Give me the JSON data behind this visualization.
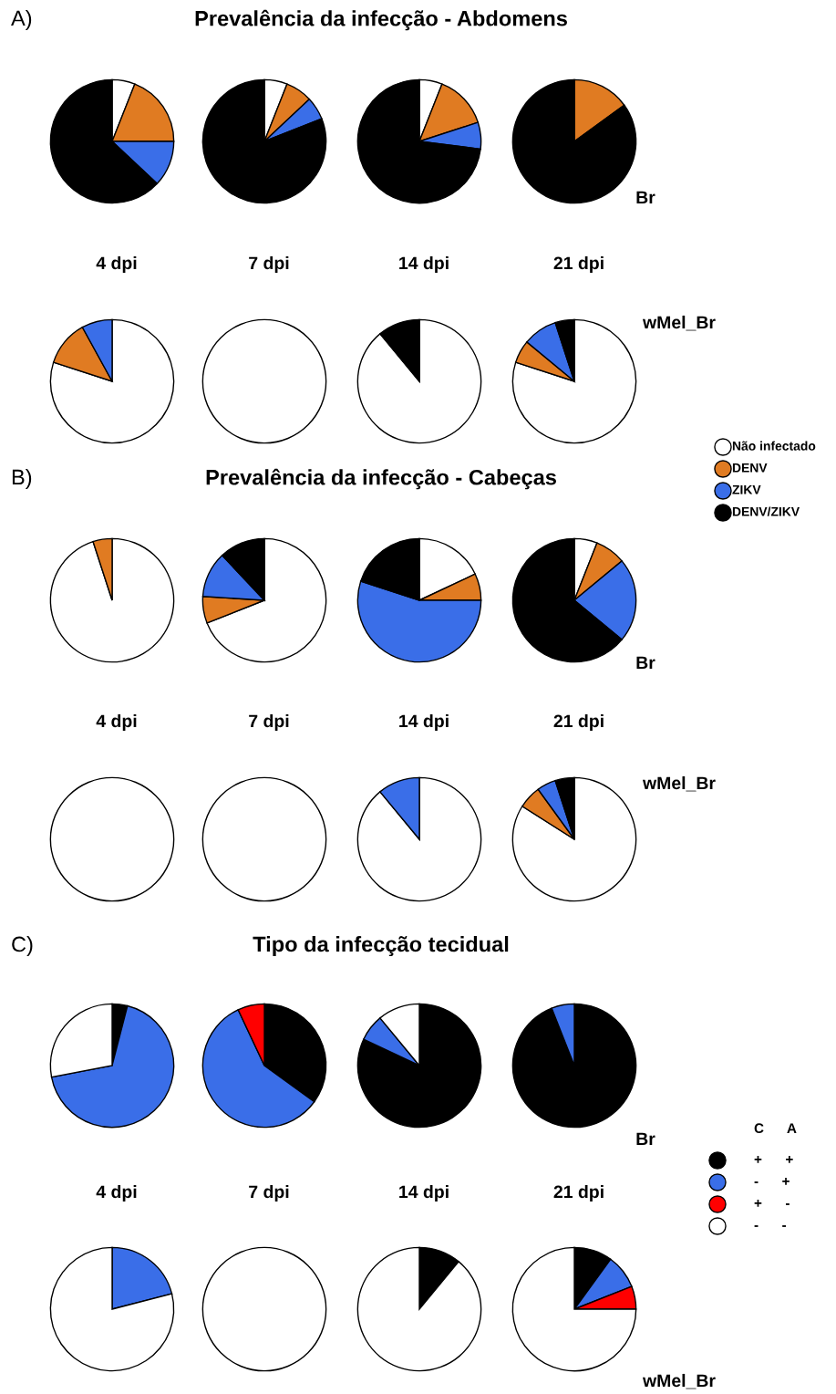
{
  "chart_data": [
    {
      "type": "other",
      "title": "Prevalência da infecção - Abdomens",
      "annotations": [
        "A)"
      ]
    },
    {
      "type": "pie",
      "xlabel": "4 dpi",
      "legend": "right",
      "categories": [
        "Não infectado",
        "DENV",
        "ZIKV",
        "DENV/ZIKV"
      ],
      "values": [
        6,
        19,
        12,
        63
      ],
      "colors": [
        "#ffffff",
        "#e07b22",
        "#3a6ee8",
        "#000000"
      ]
    },
    {
      "type": "pie",
      "xlabel": "7 dpi",
      "categories": [
        null,
        null,
        null,
        null
      ],
      "values": [
        6,
        7,
        6,
        81
      ],
      "colors": [
        "#ffffff",
        "#e07b22",
        "#3a6ee8",
        "#000000"
      ]
    },
    {
      "type": "pie",
      "xlabel": "14 dpi",
      "categories": [
        null,
        null,
        null,
        null
      ],
      "values": [
        6,
        14,
        7,
        73
      ],
      "colors": [
        "#ffffff",
        "#e07b22",
        "#3a6ee8",
        "#000000"
      ]
    },
    {
      "type": "pie",
      "xlabel": "21 dpi",
      "annotations": [
        "Br"
      ],
      "categories": [
        null,
        null,
        null,
        null
      ],
      "values": [
        0,
        15,
        0,
        85
      ],
      "colors": [
        "#ffffff",
        "#e07b22",
        "#3a6ee8",
        "#000000"
      ]
    },
    {
      "type": "pie",
      "categories": [
        null,
        null,
        null,
        null
      ],
      "values": [
        80,
        12,
        8,
        0
      ],
      "colors": [
        "#ffffff",
        "#e07b22",
        "#3a6ee8",
        "#000000"
      ]
    },
    {
      "type": "pie",
      "categories": [
        null,
        null,
        null,
        null
      ],
      "values": [
        100,
        0,
        0,
        0
      ],
      "colors": [
        "#ffffff",
        "#e07b22",
        "#3a6ee8",
        "#000000"
      ]
    },
    {
      "type": "pie",
      "categories": [
        null,
        null,
        null,
        null
      ],
      "values": [
        89,
        0,
        0,
        11
      ],
      "colors": [
        "#ffffff",
        "#e07b22",
        "#3a6ee8",
        "#000000"
      ]
    },
    {
      "type": "pie",
      "annotations": [
        "wMel_Br"
      ],
      "categories": [
        null,
        null,
        null,
        null
      ],
      "values": [
        80,
        6,
        9,
        5
      ],
      "colors": [
        "#ffffff",
        "#e07b22",
        "#3a6ee8",
        "#000000"
      ]
    },
    {
      "type": "other",
      "title": "Prevalência da infecção - Cabeças",
      "annotations": [
        "B)"
      ]
    },
    {
      "type": "pie",
      "xlabel": "4 dpi",
      "categories": [
        null,
        null,
        null,
        null
      ],
      "values": [
        95,
        5,
        0,
        0
      ],
      "colors": [
        "#ffffff",
        "#e07b22",
        "#3a6ee8",
        "#000000"
      ]
    },
    {
      "type": "pie",
      "xlabel": "7 dpi",
      "categories": [
        null,
        null,
        null,
        null
      ],
      "values": [
        69,
        7,
        12,
        12
      ],
      "colors": [
        "#ffffff",
        "#e07b22",
        "#3a6ee8",
        "#000000"
      ]
    },
    {
      "type": "pie",
      "xlabel": "14 dpi",
      "categories": [
        null,
        null,
        null,
        null
      ],
      "values": [
        18,
        7,
        55,
        20
      ],
      "colors": [
        "#ffffff",
        "#e07b22",
        "#3a6ee8",
        "#000000"
      ]
    },
    {
      "type": "pie",
      "xlabel": "21 dpi",
      "annotations": [
        "Br"
      ],
      "categories": [
        null,
        null,
        null,
        null
      ],
      "values": [
        6,
        8,
        22,
        64
      ],
      "colors": [
        "#ffffff",
        "#e07b22",
        "#3a6ee8",
        "#000000"
      ]
    },
    {
      "type": "pie",
      "categories": [
        null,
        null,
        null,
        null
      ],
      "values": [
        100,
        0,
        0,
        0
      ],
      "colors": [
        "#ffffff",
        "#e07b22",
        "#3a6ee8",
        "#000000"
      ]
    },
    {
      "type": "pie",
      "categories": [
        null,
        null,
        null,
        null
      ],
      "values": [
        100,
        0,
        0,
        0
      ],
      "colors": [
        "#ffffff",
        "#e07b22",
        "#3a6ee8",
        "#000000"
      ]
    },
    {
      "type": "pie",
      "categories": [
        null,
        null,
        null,
        null
      ],
      "values": [
        89,
        0,
        11,
        0
      ],
      "colors": [
        "#ffffff",
        "#e07b22",
        "#3a6ee8",
        "#000000"
      ]
    },
    {
      "type": "pie",
      "annotations": [
        "wMel_Br"
      ],
      "categories": [
        null,
        null,
        null,
        null
      ],
      "values": [
        84,
        6,
        5,
        5
      ],
      "colors": [
        "#ffffff",
        "#e07b22",
        "#3a6ee8",
        "#000000"
      ]
    },
    {
      "type": "other",
      "title": "Tipo da infecção tecidual",
      "annotations": [
        "C)"
      ]
    },
    {
      "type": "pie",
      "xlabel": "4 dpi",
      "legend": "right",
      "legend_title": "C      A",
      "categories": [
        "+      +",
        "-      +",
        "+      -",
        "-      -"
      ],
      "values": [
        4,
        68,
        0,
        28
      ],
      "colors": [
        "#000000",
        "#3a6ee8",
        "#ff0000",
        "#ffffff"
      ]
    },
    {
      "type": "pie",
      "xlabel": "7 dpi",
      "categories": [
        null,
        null,
        null,
        null
      ],
      "values": [
        35,
        58,
        7,
        0
      ],
      "colors": [
        "#000000",
        "#3a6ee8",
        "#ff0000",
        "#ffffff"
      ]
    },
    {
      "type": "pie",
      "xlabel": "14 dpi",
      "categories": [
        null,
        null,
        null,
        null
      ],
      "values": [
        82,
        7,
        0,
        11
      ],
      "colors": [
        "#000000",
        "#3a6ee8",
        "#ff0000",
        "#ffffff"
      ]
    },
    {
      "type": "pie",
      "xlabel": "21 dpi",
      "annotations": [
        "Br"
      ],
      "categories": [
        null,
        null,
        null,
        null
      ],
      "values": [
        94,
        6,
        0,
        0
      ],
      "colors": [
        "#000000",
        "#3a6ee8",
        "#ff0000",
        "#ffffff"
      ]
    },
    {
      "type": "pie",
      "categories": [
        null,
        null,
        null,
        null
      ],
      "values": [
        0,
        21,
        0,
        79
      ],
      "colors": [
        "#000000",
        "#3a6ee8",
        "#ff0000",
        "#ffffff"
      ]
    },
    {
      "type": "pie",
      "categories": [
        null,
        null,
        null,
        null
      ],
      "values": [
        0,
        0,
        0,
        100
      ],
      "colors": [
        "#000000",
        "#3a6ee8",
        "#ff0000",
        "#ffffff"
      ]
    },
    {
      "type": "pie",
      "categories": [
        null,
        null,
        null,
        null
      ],
      "values": [
        11,
        0,
        0,
        89
      ],
      "colors": [
        "#000000",
        "#3a6ee8",
        "#ff0000",
        "#ffffff"
      ]
    },
    {
      "type": "pie",
      "annotations": [
        "wMel_Br"
      ],
      "categories": [
        null,
        null,
        null,
        null
      ],
      "values": [
        10,
        9,
        6,
        75
      ],
      "colors": [
        "#000000",
        "#3a6ee8",
        "#ff0000",
        "#ffffff"
      ]
    }
  ]
}
